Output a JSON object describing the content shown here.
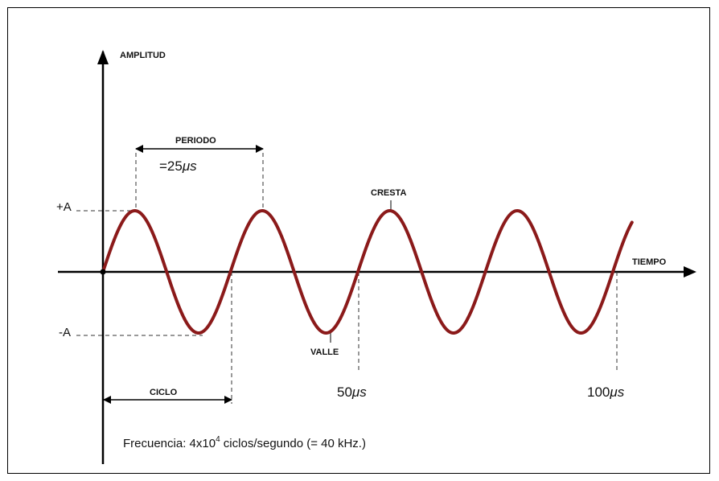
{
  "labels": {
    "y_axis": "AMPLITUD",
    "x_axis": "TIEMPO",
    "period": "PERIODO",
    "period_value": "=25",
    "period_unit": "μs",
    "crest": "CRESTA",
    "trough": "VALLE",
    "plus_a": "+A",
    "minus_a": "-A",
    "cycle": "CICLO",
    "tick_50": "50",
    "tick_100": "100",
    "tick_unit": "μs"
  },
  "caption": {
    "prefix": "Frecuencia: 4x10",
    "exponent": "4",
    "suffix": " ciclos/segundo (= 40  kHz.)"
  },
  "colors": {
    "wave": "#8b1a1a",
    "axis": "#000000",
    "dash": "#333333"
  },
  "wave": {
    "period_us": 25,
    "cycles_shown": 4.15,
    "amplitude": 1,
    "frequency_hz": 40000
  }
}
